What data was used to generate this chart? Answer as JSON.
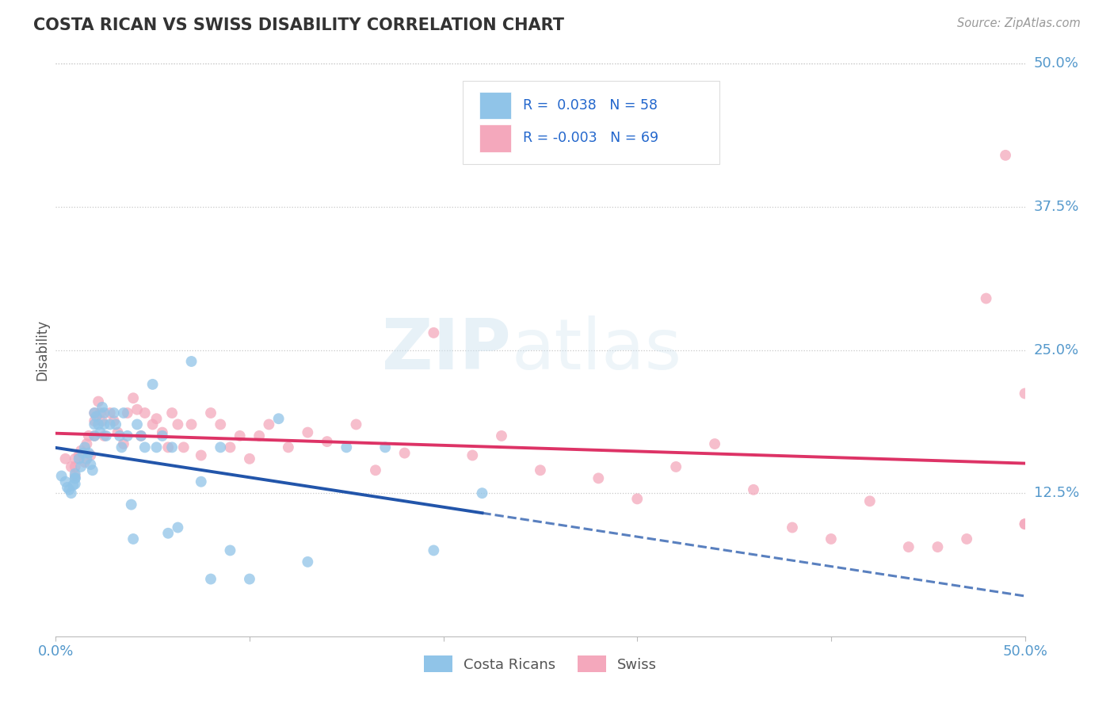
{
  "title": "COSTA RICAN VS SWISS DISABILITY CORRELATION CHART",
  "source": "Source: ZipAtlas.com",
  "ylabel": "Disability",
  "xlim": [
    0,
    0.5
  ],
  "ylim": [
    0,
    0.5
  ],
  "yticks": [
    0.125,
    0.25,
    0.375,
    0.5
  ],
  "ytick_labels": [
    "12.5%",
    "25.0%",
    "37.5%",
    "50.0%"
  ],
  "grid_color": "#c8c8c8",
  "background_color": "#ffffff",
  "blue_color": "#90c4e8",
  "pink_color": "#f4a8bc",
  "blue_line_color": "#2255aa",
  "pink_line_color": "#dd3366",
  "label1": "Costa Ricans",
  "label2": "Swiss",
  "watermark": "ZIPatlas",
  "title_color": "#333333",
  "axis_label_color": "#555555",
  "right_label_color": "#5599cc",
  "legend_r_color": "#2266cc",
  "costa_rican_x": [
    0.003,
    0.005,
    0.006,
    0.007,
    0.008,
    0.009,
    0.01,
    0.01,
    0.01,
    0.01,
    0.012,
    0.013,
    0.014,
    0.015,
    0.016,
    0.017,
    0.018,
    0.019,
    0.02,
    0.02,
    0.02,
    0.021,
    0.022,
    0.023,
    0.024,
    0.025,
    0.025,
    0.026,
    0.028,
    0.03,
    0.031,
    0.033,
    0.034,
    0.035,
    0.037,
    0.039,
    0.04,
    0.042,
    0.044,
    0.046,
    0.05,
    0.052,
    0.055,
    0.058,
    0.06,
    0.063,
    0.07,
    0.075,
    0.08,
    0.085,
    0.09,
    0.1,
    0.115,
    0.13,
    0.15,
    0.17,
    0.195,
    0.22
  ],
  "costa_rican_y": [
    0.14,
    0.135,
    0.13,
    0.128,
    0.125,
    0.132,
    0.138,
    0.142,
    0.138,
    0.133,
    0.155,
    0.148,
    0.16,
    0.165,
    0.155,
    0.16,
    0.15,
    0.145,
    0.195,
    0.185,
    0.175,
    0.192,
    0.185,
    0.178,
    0.2,
    0.195,
    0.185,
    0.175,
    0.185,
    0.195,
    0.185,
    0.175,
    0.165,
    0.195,
    0.175,
    0.115,
    0.085,
    0.185,
    0.175,
    0.165,
    0.22,
    0.165,
    0.175,
    0.09,
    0.165,
    0.095,
    0.24,
    0.135,
    0.05,
    0.165,
    0.075,
    0.05,
    0.19,
    0.065,
    0.165,
    0.165,
    0.075,
    0.125
  ],
  "swiss_x": [
    0.005,
    0.008,
    0.01,
    0.01,
    0.01,
    0.012,
    0.013,
    0.015,
    0.016,
    0.017,
    0.018,
    0.02,
    0.02,
    0.02,
    0.022,
    0.023,
    0.024,
    0.025,
    0.028,
    0.03,
    0.032,
    0.035,
    0.037,
    0.04,
    0.042,
    0.044,
    0.046,
    0.05,
    0.052,
    0.055,
    0.058,
    0.06,
    0.063,
    0.066,
    0.07,
    0.075,
    0.08,
    0.085,
    0.09,
    0.095,
    0.1,
    0.105,
    0.11,
    0.12,
    0.13,
    0.14,
    0.155,
    0.165,
    0.18,
    0.195,
    0.215,
    0.23,
    0.25,
    0.28,
    0.3,
    0.32,
    0.34,
    0.36,
    0.38,
    0.4,
    0.42,
    0.44,
    0.455,
    0.47,
    0.48,
    0.49,
    0.5,
    0.5,
    0.5
  ],
  "swiss_y": [
    0.155,
    0.148,
    0.155,
    0.148,
    0.14,
    0.158,
    0.162,
    0.152,
    0.168,
    0.175,
    0.158,
    0.195,
    0.188,
    0.175,
    0.205,
    0.195,
    0.188,
    0.175,
    0.195,
    0.188,
    0.178,
    0.168,
    0.195,
    0.208,
    0.198,
    0.175,
    0.195,
    0.185,
    0.19,
    0.178,
    0.165,
    0.195,
    0.185,
    0.165,
    0.185,
    0.158,
    0.195,
    0.185,
    0.165,
    0.175,
    0.155,
    0.175,
    0.185,
    0.165,
    0.178,
    0.17,
    0.185,
    0.145,
    0.16,
    0.265,
    0.158,
    0.175,
    0.145,
    0.138,
    0.12,
    0.148,
    0.168,
    0.128,
    0.095,
    0.085,
    0.118,
    0.078,
    0.078,
    0.085,
    0.295,
    0.42,
    0.212,
    0.098,
    0.098
  ]
}
